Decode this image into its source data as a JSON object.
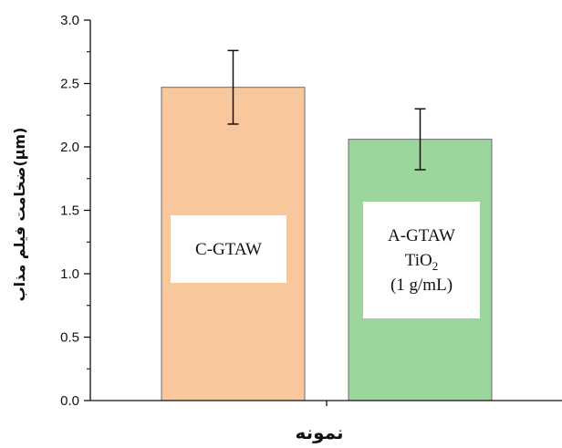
{
  "chart_data": {
    "type": "bar",
    "xlabel": "نمونه",
    "ylabel": "ضخامت فیلم مذاب(μm)",
    "ylim": [
      0,
      3.0
    ],
    "y_ticks": [
      "0.0",
      "0.5",
      "1.0",
      "1.5",
      "2.0",
      "2.5",
      "3.0"
    ],
    "y_tick_values": [
      0,
      0.5,
      1.0,
      1.5,
      2.0,
      2.5,
      3.0
    ],
    "grid": false,
    "categories": [
      "C-GTAW",
      "A-GTAW TiO2 (1 g/mL)"
    ],
    "values": [
      2.47,
      2.06
    ],
    "error": [
      0.29,
      0.24
    ],
    "bar_colors": [
      "#f8c79c",
      "#9bd69c"
    ],
    "bar_labels": [
      {
        "lines": [
          "C-GTAW"
        ]
      },
      {
        "lines": [
          "A-GTAW",
          "TiO",
          "(1 g/mL)"
        ],
        "subscript": "2"
      }
    ]
  }
}
